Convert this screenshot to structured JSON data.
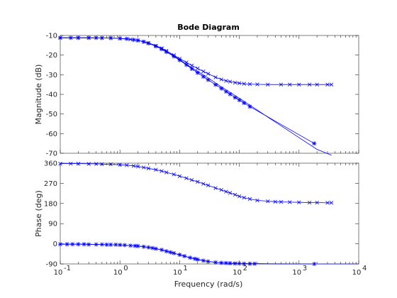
{
  "chart_data": {
    "type": "line",
    "title": "Bode Diagram",
    "xlabel": "Frequency  (rad/s)",
    "xscale": "log",
    "xlim": [
      0.1,
      10000
    ],
    "grid": false,
    "line_color": "#0000ff",
    "axis_color": "#262626",
    "x_tick_labels": [
      "10",
      "10",
      "10",
      "10",
      "10",
      "10"
    ],
    "x_tick_exponents": [
      "-1",
      "0",
      "1",
      "2",
      "3",
      "4"
    ],
    "panels": [
      {
        "name": "magnitude",
        "ylabel": "Magnitude (dB)",
        "ylim": [
          -70,
          -10
        ],
        "y_ticks": [
          -70,
          -60,
          -50,
          -40,
          -30,
          -20,
          -10
        ],
        "series": [
          {
            "marker": "line",
            "x": [
              0.1,
              0.3,
              0.6,
              1,
              1.5,
              2,
              3,
              4,
              5,
              7,
              10,
              15,
              20,
              30,
              50,
              70,
              100,
              150,
              200,
              300,
              500,
              1000,
              2000,
              3500
            ],
            "values": [
              -11.2,
              -11.2,
              -11.3,
              -11.5,
              -12,
              -12.5,
              -13.8,
              -15.2,
              -16.6,
              -19.2,
              -22.3,
              -25.9,
              -28.3,
              -31.6,
              -36.2,
              -39,
              -42,
              -45.5,
              -48,
              -51.6,
              -56,
              -62,
              -68,
              -71
            ]
          },
          {
            "marker": "x",
            "x": [
              0.1,
              0.2,
              0.3,
              0.5,
              0.7,
              1,
              1.5,
              2,
              2.5,
              3,
              4,
              5,
              6,
              8,
              10,
              13,
              16,
              20,
              25,
              30,
              40,
              50,
              60,
              70,
              85,
              100,
              120,
              150,
              200,
              300,
              500,
              700,
              1000,
              1500,
              2000,
              3000,
              3500
            ],
            "values": [
              -11.2,
              -11.2,
              -11.2,
              -11.3,
              -11.3,
              -11.5,
              -12,
              -12.5,
              -13.2,
              -13.8,
              -15.2,
              -16.5,
              -17.8,
              -20,
              -21.8,
              -23.7,
              -25.3,
              -26.8,
              -28.3,
              -29.5,
              -31.3,
              -32.4,
              -33.1,
              -33.5,
              -34,
              -34.3,
              -34.6,
              -34.8,
              -34.9,
              -35,
              -35,
              -35,
              -35,
              -35,
              -35,
              -35,
              -35
            ]
          },
          {
            "marker": "*",
            "x": [
              0.1,
              0.15,
              0.2,
              0.3,
              0.4,
              0.5,
              0.7,
              1,
              1.3,
              1.7,
              2,
              2.5,
              3,
              4,
              5,
              6,
              8,
              10,
              13,
              16,
              20,
              25,
              30,
              40,
              50,
              60,
              70,
              85,
              100,
              120,
              150,
              1800
            ],
            "values": [
              -11.2,
              -11.2,
              -11.2,
              -11.2,
              -11.2,
              -11.3,
              -11.3,
              -11.5,
              -11.7,
              -12.2,
              -12.5,
              -13.2,
              -14,
              -15.5,
              -17,
              -18.4,
              -20.7,
              -22.6,
              -25,
              -27,
              -29,
              -31,
              -32.6,
              -35.1,
              -37,
              -38.6,
              -39.9,
              -41.6,
              -42.9,
              -44.4,
              -46.2,
              -65
            ]
          }
        ]
      },
      {
        "name": "phase",
        "ylabel": "Phase (deg)",
        "ylim": [
          -90,
          360
        ],
        "y_ticks": [
          -90,
          0,
          90,
          180,
          270,
          360
        ],
        "series": [
          {
            "marker": "x",
            "x": [
              0.1,
              0.15,
              0.2,
              0.3,
              0.4,
              0.5,
              0.7,
              1,
              1.3,
              1.7,
              2,
              2.5,
              3,
              4,
              5,
              6,
              8,
              10,
              13,
              16,
              20,
              25,
              30,
              40,
              50,
              60,
              70,
              85,
              100,
              120,
              150,
              200,
              300,
              400,
              500,
              700,
              1000,
              1500,
              2000,
              3000,
              3500
            ],
            "values": [
              358,
              358,
              358,
              357,
              357,
              356,
              355,
              353,
              351,
              348,
              345,
              341,
              337,
              331,
              325,
              319,
              310,
              302,
              293,
              285,
              277,
              268,
              261,
              249,
              241,
              233,
              227,
              219,
              212,
              206,
              200,
              194,
              190,
              188,
              187,
              186,
              185,
              184,
              184,
              183,
              183
            ]
          },
          {
            "marker": "line",
            "x": [
              0.1,
              0.3,
              1,
              2,
              3,
              5,
              8,
              10,
              15,
              20,
              30,
              50,
              100,
              200,
              500,
              1000,
              10000
            ],
            "values": [
              -2,
              -2,
              -5,
              -10,
              -16,
              -27,
              -42,
              -49,
              -62,
              -70,
              -79,
              -85,
              -88,
              -89,
              -90,
              -90,
              -90
            ]
          },
          {
            "marker": "*",
            "x": [
              0.1,
              0.13,
              0.16,
              0.2,
              0.25,
              0.3,
              0.4,
              0.5,
              0.6,
              0.7,
              0.85,
              1,
              1.2,
              1.5,
              1.8,
              2,
              2.5,
              3,
              3.5,
              4,
              5,
              6,
              7,
              8,
              10,
              12,
              15,
              18,
              20,
              25,
              30,
              40,
              50,
              60,
              70,
              85,
              100,
              120,
              150,
              180,
              1800
            ],
            "values": [
              -2,
              -2,
              -2,
              -2,
              -2,
              -3,
              -3,
              -3,
              -4,
              -4,
              -4,
              -5,
              -6,
              -8,
              -9,
              -10,
              -13,
              -16,
              -19,
              -22,
              -27,
              -33,
              -38,
              -42,
              -49,
              -55,
              -62,
              -67,
              -70,
              -75,
              -79,
              -83,
              -85,
              -86,
              -87,
              -88,
              -88,
              -89,
              -89,
              -89,
              -90
            ]
          }
        ]
      }
    ]
  }
}
